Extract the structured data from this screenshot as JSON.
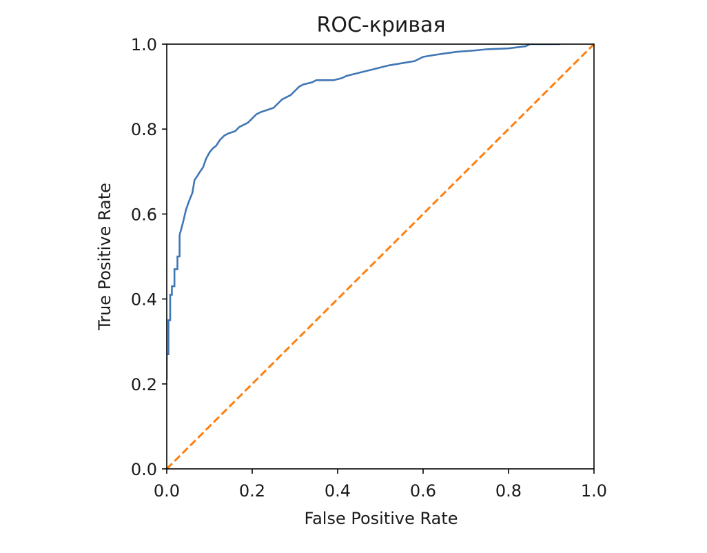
{
  "chart_data": {
    "type": "line",
    "title": "ROC-кривая",
    "xlabel": "False Positive Rate",
    "ylabel": "True Positive Rate",
    "xlim": [
      0.0,
      1.0
    ],
    "ylim": [
      0.0,
      1.0
    ],
    "xticks": [
      "0.0",
      "0.2",
      "0.4",
      "0.6",
      "0.8",
      "1.0"
    ],
    "yticks": [
      "0.0",
      "0.2",
      "0.4",
      "0.6",
      "0.8",
      "1.0"
    ],
    "grid": false,
    "legend": "none",
    "series": [
      {
        "color": "#3f76b4",
        "style": "solid",
        "x": [
          0.0,
          0.0,
          0.004,
          0.004,
          0.008,
          0.008,
          0.012,
          0.012,
          0.018,
          0.018,
          0.025,
          0.025,
          0.03,
          0.03,
          0.038,
          0.045,
          0.052,
          0.06,
          0.065,
          0.072,
          0.078,
          0.085,
          0.092,
          0.1,
          0.108,
          0.115,
          0.125,
          0.135,
          0.145,
          0.16,
          0.17,
          0.18,
          0.19,
          0.2,
          0.205,
          0.21,
          0.22,
          0.235,
          0.25,
          0.26,
          0.27,
          0.29,
          0.3,
          0.31,
          0.32,
          0.34,
          0.35,
          0.37,
          0.39,
          0.41,
          0.42,
          0.44,
          0.46,
          0.48,
          0.5,
          0.52,
          0.55,
          0.58,
          0.6,
          0.63,
          0.65,
          0.68,
          0.72,
          0.75,
          0.8,
          0.84,
          0.85,
          0.88,
          0.9,
          0.92
        ],
        "y": [
          0.21,
          0.27,
          0.27,
          0.35,
          0.35,
          0.41,
          0.41,
          0.43,
          0.43,
          0.47,
          0.47,
          0.5,
          0.5,
          0.55,
          0.58,
          0.61,
          0.63,
          0.65,
          0.68,
          0.69,
          0.7,
          0.71,
          0.73,
          0.745,
          0.755,
          0.76,
          0.775,
          0.785,
          0.79,
          0.795,
          0.805,
          0.81,
          0.815,
          0.825,
          0.83,
          0.835,
          0.84,
          0.845,
          0.85,
          0.86,
          0.87,
          0.88,
          0.89,
          0.9,
          0.905,
          0.91,
          0.915,
          0.915,
          0.915,
          0.92,
          0.925,
          0.93,
          0.935,
          0.94,
          0.945,
          0.95,
          0.955,
          0.96,
          0.97,
          0.975,
          0.978,
          0.982,
          0.985,
          0.988,
          0.99,
          0.995,
          1.0,
          1.0,
          1.0,
          1.0
        ]
      },
      {
        "color": "#ff7f0e",
        "style": "dashed",
        "x": [
          0.0,
          1.0
        ],
        "y": [
          0.0,
          1.0
        ]
      }
    ]
  }
}
